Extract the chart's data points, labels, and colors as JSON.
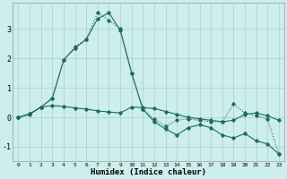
{
  "xlabel": "Humidex (Indice chaleur)",
  "background_color": "#cceeed",
  "grid_color": "#aacccc",
  "line_color": "#1e6b5e",
  "xlim": [
    -0.5,
    23.5
  ],
  "ylim": [
    -1.5,
    3.9
  ],
  "yticks": [
    -1,
    0,
    1,
    2,
    3
  ],
  "xticks": [
    0,
    1,
    2,
    3,
    4,
    5,
    6,
    7,
    8,
    9,
    10,
    11,
    12,
    13,
    14,
    15,
    16,
    17,
    18,
    19,
    20,
    21,
    22,
    23
  ],
  "line1_x": [
    0,
    1,
    2,
    3,
    4,
    5,
    6,
    7,
    8,
    9,
    10,
    11,
    12,
    13,
    14,
    15,
    16,
    17,
    18,
    19,
    20,
    21,
    22,
    23
  ],
  "line1_y": [
    0.0,
    0.1,
    0.35,
    0.4,
    0.37,
    0.32,
    0.28,
    0.22,
    0.18,
    0.15,
    0.35,
    0.33,
    0.3,
    0.2,
    0.1,
    0.0,
    -0.05,
    -0.1,
    -0.15,
    -0.1,
    0.1,
    0.15,
    0.05,
    -0.1
  ],
  "line2_x": [
    0,
    1,
    2,
    3,
    4,
    5,
    6,
    7,
    8,
    9,
    10,
    11,
    12,
    13,
    14,
    15,
    16,
    17,
    18,
    19,
    20,
    21,
    22,
    23
  ],
  "line2_y": [
    0.0,
    0.12,
    0.35,
    0.65,
    1.95,
    2.4,
    2.65,
    3.55,
    3.3,
    3.0,
    1.5,
    0.27,
    -0.05,
    -0.3,
    -0.1,
    -0.05,
    -0.1,
    -0.15,
    -0.15,
    0.45,
    0.15,
    0.05,
    -0.05,
    -1.25
  ],
  "line3_x": [
    0,
    1,
    2,
    3,
    4,
    5,
    6,
    7,
    8,
    9,
    10,
    11,
    12,
    13,
    14,
    15,
    16,
    17,
    18,
    19,
    20,
    21,
    22,
    23
  ],
  "line3_y": [
    0.0,
    0.12,
    0.35,
    0.65,
    1.95,
    2.35,
    2.65,
    3.35,
    3.55,
    2.95,
    1.5,
    0.27,
    -0.15,
    -0.4,
    -0.6,
    -0.35,
    -0.25,
    -0.35,
    -0.6,
    -0.7,
    -0.55,
    -0.8,
    -0.9,
    -1.25
  ]
}
